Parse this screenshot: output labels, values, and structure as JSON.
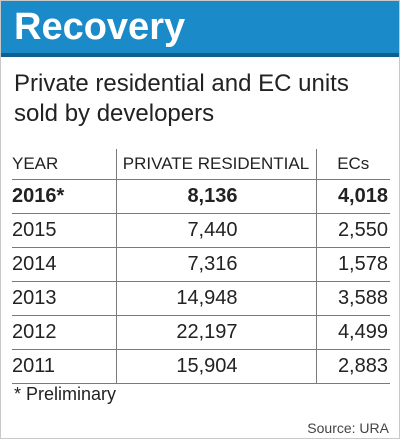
{
  "header": {
    "title": "Recovery"
  },
  "subtitle": "Private residential and EC units sold by developers",
  "chart_data": {
    "type": "table",
    "title": "Recovery",
    "subtitle": "Private residential and EC units sold by developers",
    "columns": [
      "YEAR",
      "PRIVATE RESIDENTIAL",
      "ECs"
    ],
    "rows": [
      {
        "year": "2016*",
        "private_residential": "8,136",
        "ecs": "4,018",
        "highlight": true
      },
      {
        "year": "2015",
        "private_residential": "7,440",
        "ecs": "2,550",
        "highlight": false
      },
      {
        "year": "2014",
        "private_residential": "7,316",
        "ecs": "1,578",
        "highlight": false
      },
      {
        "year": "2013",
        "private_residential": "14,948",
        "ecs": "3,588",
        "highlight": false
      },
      {
        "year": "2012",
        "private_residential": "22,197",
        "ecs": "4,499",
        "highlight": false
      },
      {
        "year": "2011",
        "private_residential": "15,904",
        "ecs": "2,883",
        "highlight": false
      }
    ],
    "series": [
      {
        "name": "PRIVATE RESIDENTIAL",
        "values": [
          8136,
          7440,
          7316,
          14948,
          22197,
          15904
        ]
      },
      {
        "name": "ECs",
        "values": [
          4018,
          2550,
          1578,
          3588,
          4499,
          2883
        ]
      }
    ],
    "categories": [
      "2016*",
      "2015",
      "2014",
      "2013",
      "2012",
      "2011"
    ]
  },
  "footnote": "* Preliminary",
  "source": "Source: URA",
  "colors": {
    "banner": "#1b8ac9",
    "banner_text": "#ffffff"
  }
}
